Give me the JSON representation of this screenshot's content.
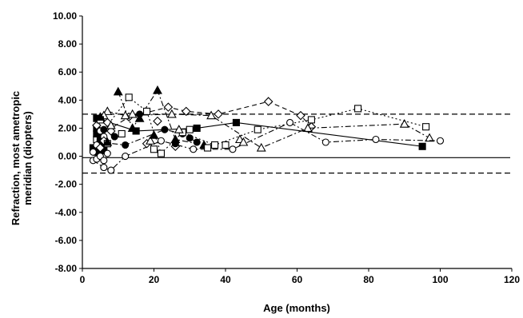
{
  "chart_data": {
    "type": "scatter",
    "title": "",
    "xlabel": "Age (months)",
    "ylabel_lines": [
      "Refraction, most ametropic",
      "meridian (diopters)"
    ],
    "xlim": [
      0,
      120
    ],
    "ylim": [
      -8,
      10
    ],
    "x_ticks": [
      "0",
      "20",
      "40",
      "60",
      "80",
      "100",
      "120"
    ],
    "y_ticks": [
      "10.00",
      "8.00",
      "6.00",
      "4.00",
      "2.00",
      "0.00",
      "-2.00",
      "-4.00",
      "-6.00",
      "-8.00"
    ],
    "grid": false,
    "legend": "none",
    "reference_lines": [
      {
        "y": 3.0,
        "style": "dashed"
      },
      {
        "y": -0.1,
        "style": "solid"
      },
      {
        "y": -1.2,
        "style": "dashed"
      }
    ],
    "series": [
      {
        "marker": "square-filled",
        "line": "solid",
        "x": [
          4,
          15,
          32,
          43,
          95
        ],
        "y": [
          2.7,
          1.8,
          2.0,
          2.4,
          0.7
        ]
      },
      {
        "marker": "triangle-filled",
        "line": "dash-dot",
        "x": [
          10,
          14,
          21,
          26,
          34
        ],
        "y": [
          4.6,
          2.0,
          4.7,
          1.2,
          0.8
        ]
      },
      {
        "marker": "circle-filled",
        "line": "dash-dot",
        "x": [
          5,
          12,
          23,
          28,
          32
        ],
        "y": [
          1.0,
          0.8,
          1.9,
          1.6,
          1.0
        ]
      },
      {
        "marker": "diamond",
        "line": "dashed",
        "x": [
          5,
          13,
          24,
          29,
          38,
          52,
          61,
          64
        ],
        "y": [
          1.5,
          2.8,
          3.5,
          3.2,
          3.0,
          3.9,
          2.9,
          2.1
        ]
      },
      {
        "marker": "triangle",
        "line": "dash-dot",
        "x": [
          7,
          12,
          25,
          36,
          50,
          63,
          90,
          97
        ],
        "y": [
          3.2,
          2.9,
          3.0,
          2.9,
          0.6,
          2.0,
          2.3,
          1.3
        ]
      },
      {
        "marker": "square",
        "line": "dotted",
        "x": [
          4,
          13,
          18,
          22,
          28,
          37,
          49,
          64,
          77,
          96
        ],
        "y": [
          1.2,
          4.2,
          3.2,
          0.2,
          1.7,
          0.8,
          1.9,
          2.6,
          3.4,
          2.1
        ]
      },
      {
        "marker": "circle",
        "line": "dash-dot",
        "x": [
          3,
          6,
          8,
          12,
          22,
          31,
          42,
          58,
          68,
          82,
          100
        ],
        "y": [
          -0.3,
          -0.8,
          -1.0,
          0.0,
          1.1,
          0.5,
          0.5,
          2.4,
          1.0,
          1.2,
          1.1
        ]
      },
      {
        "marker": "square-filled",
        "line": "none",
        "x": [
          3,
          4,
          4,
          5,
          6,
          5,
          4
        ],
        "y": [
          0.6,
          1.6,
          2.0,
          1.3,
          0.4,
          0.9,
          0.3
        ]
      },
      {
        "marker": "circle",
        "line": "none",
        "x": [
          3,
          4,
          5,
          5,
          6,
          7,
          6,
          4
        ],
        "y": [
          0.3,
          -0.2,
          0.0,
          1.8,
          -0.3,
          0.2,
          1.4,
          0.8
        ]
      },
      {
        "marker": "diamond",
        "line": "none",
        "x": [
          4,
          5,
          6,
          7,
          8,
          18,
          21,
          26
        ],
        "y": [
          2.2,
          0.6,
          1.1,
          2.4,
          1.8,
          0.9,
          2.5,
          0.7
        ]
      },
      {
        "marker": "triangle",
        "line": "none",
        "x": [
          6,
          8,
          14,
          19,
          27,
          44,
          45
        ],
        "y": [
          2.9,
          2.2,
          3.0,
          1.1,
          1.9,
          1.2,
          1.0
        ]
      },
      {
        "marker": "square",
        "line": "none",
        "x": [
          5,
          7,
          11,
          20,
          30,
          35,
          40
        ],
        "y": [
          2.6,
          0.9,
          1.6,
          0.5,
          1.9,
          0.6,
          0.8
        ]
      },
      {
        "marker": "circle-filled",
        "line": "none",
        "x": [
          6,
          9,
          16,
          26,
          30
        ],
        "y": [
          1.9,
          1.4,
          3.0,
          0.9,
          1.3
        ]
      },
      {
        "marker": "triangle-filled",
        "line": "none",
        "x": [
          5,
          7,
          16,
          20
        ],
        "y": [
          2.8,
          1.0,
          2.7,
          1.5
        ]
      }
    ]
  }
}
